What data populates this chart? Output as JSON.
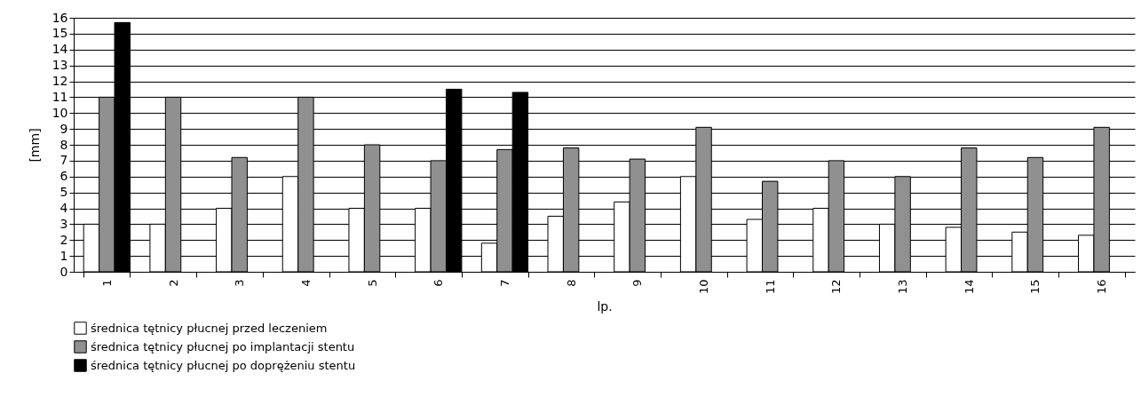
{
  "chart_data": {
    "type": "bar",
    "xlabel": "lp.",
    "ylabel": "[mm]",
    "categories": [
      "1",
      "2",
      "3",
      "4",
      "5",
      "6",
      "7",
      "8",
      "9",
      "10",
      "11",
      "12",
      "13",
      "14",
      "15",
      "16"
    ],
    "series": [
      {
        "name": "średnica tętnicy płucnej przed leczeniem",
        "color": "#ffffff",
        "values": [
          3,
          3,
          4,
          6,
          4,
          4,
          1.8,
          3.5,
          4.4,
          6,
          3.3,
          4,
          3,
          2.8,
          2.5,
          2.3
        ]
      },
      {
        "name": "średnica tętnicy płucnej po implantacji stentu",
        "color": "#909090",
        "values": [
          11,
          11,
          7.2,
          11,
          8,
          7,
          7.7,
          7.8,
          7.1,
          9.1,
          5.7,
          7,
          6,
          7.8,
          7.2,
          9.1
        ]
      },
      {
        "name": "średnica tętnicy płucnej po doprężeniu stentu",
        "color": "#000000",
        "values": [
          15.7,
          null,
          null,
          null,
          null,
          11.5,
          11.3,
          null,
          null,
          null,
          null,
          null,
          null,
          null,
          null,
          null
        ]
      }
    ],
    "ylim": [
      0,
      16
    ],
    "yticks": [
      0,
      1,
      2,
      3,
      4,
      5,
      6,
      7,
      8,
      9,
      10,
      11,
      12,
      13,
      14,
      15,
      16
    ],
    "grid": "y",
    "legend": "bottom left"
  }
}
